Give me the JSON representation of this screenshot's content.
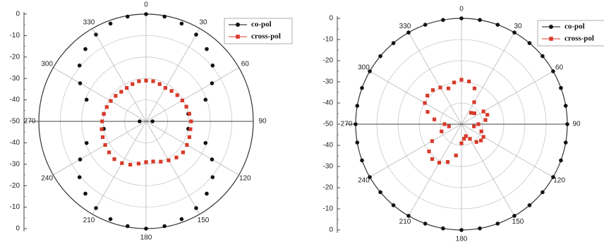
{
  "chart_data": [
    {
      "type": "polar-scatter",
      "title": "",
      "r_axis": {
        "range": [
          -50,
          0
        ],
        "tick_labels": [
          "0",
          "-10",
          "-20",
          "-30",
          "-40",
          "-50",
          "-40",
          "-30",
          "-20",
          "-10",
          "0"
        ]
      },
      "angle_axis": {
        "unit": "deg",
        "tick_labels": [
          "0",
          "30",
          "60",
          "90",
          "120",
          "150",
          "180",
          "210",
          "240",
          "270",
          "300",
          "330"
        ]
      },
      "legend": {
        "position": "top-right",
        "entries": [
          "co-pol",
          "cross-pol"
        ]
      },
      "grid": true,
      "series": [
        {
          "name": "co-pol",
          "color": "#111111",
          "marker": "circle",
          "angles": [
            0,
            10,
            20,
            30,
            40,
            50,
            60,
            70,
            80,
            90,
            100,
            110,
            120,
            130,
            140,
            150,
            160,
            170,
            180,
            190,
            200,
            210,
            220,
            230,
            240,
            250,
            260,
            270,
            280,
            290,
            300,
            310,
            320,
            330,
            340,
            350
          ],
          "values": [
            0,
            -0.4,
            -1.5,
            -3.3,
            -6,
            -9.5,
            -14.5,
            -20.5,
            -30,
            -47,
            -30,
            -20.5,
            -14.5,
            -9.5,
            -6,
            -3.3,
            -1.5,
            -0.4,
            0,
            -0.4,
            -1.5,
            -3.3,
            -6,
            -9.5,
            -14.5,
            -20.5,
            -30,
            -47,
            -30,
            -20.5,
            -14.5,
            -9.5,
            -6,
            -3.3,
            -1.5,
            -0.4
          ]
        },
        {
          "name": "cross-pol",
          "color": "#d83a2a",
          "marker": "square",
          "angles": [
            0,
            10,
            20,
            30,
            40,
            50,
            60,
            70,
            80,
            90,
            100,
            110,
            120,
            130,
            140,
            150,
            160,
            170,
            180,
            190,
            200,
            210,
            220,
            230,
            240,
            250,
            260,
            270,
            280,
            290,
            300,
            310,
            320,
            330,
            340,
            350
          ],
          "values": [
            -31,
            -31,
            -31.5,
            -32,
            -31.5,
            -31,
            -30.5,
            -30,
            -29.5,
            -29,
            -29,
            -28.5,
            -28,
            -27.5,
            -28,
            -29,
            -30,
            -31,
            -31,
            -30,
            -28.5,
            -27.5,
            -27,
            -27.5,
            -28,
            -28.5,
            -29,
            -29.5,
            -30,
            -30.5,
            -31,
            -31.5,
            -32,
            -32,
            -31.5,
            -31
          ]
        }
      ]
    },
    {
      "type": "polar-scatter",
      "title": "",
      "r_axis": {
        "range": [
          -50,
          0
        ],
        "tick_labels": [
          "0",
          "-10",
          "-20",
          "-30",
          "-40",
          "-50",
          "-40",
          "-30",
          "-20",
          "-10",
          "0"
        ]
      },
      "angle_axis": {
        "unit": "deg",
        "tick_labels": [
          "0",
          "30",
          "60",
          "90",
          "120",
          "150",
          "180",
          "210",
          "240",
          "270",
          "300",
          "330"
        ]
      },
      "legend": {
        "position": "top-right",
        "entries": [
          "co-pol",
          "cross-pol"
        ]
      },
      "grid": true,
      "series": [
        {
          "name": "co-pol",
          "color": "#111111",
          "marker": "circle",
          "angles": [
            0,
            10,
            20,
            30,
            40,
            50,
            60,
            70,
            80,
            90,
            100,
            110,
            120,
            130,
            140,
            150,
            160,
            170,
            180,
            190,
            200,
            210,
            220,
            230,
            240,
            250,
            260,
            270,
            280,
            290,
            300,
            310,
            320,
            330,
            340,
            350
          ],
          "values": [
            0,
            0,
            0,
            0,
            0,
            0,
            0,
            0,
            0,
            0,
            0,
            0,
            0,
            0,
            0,
            0,
            0,
            0,
            0,
            0,
            0,
            0,
            0,
            0,
            0,
            0,
            0,
            0,
            0,
            0,
            0,
            0,
            0,
            0,
            0,
            0
          ]
        },
        {
          "name": "cross-pol",
          "color": "#d83a2a",
          "marker": "square",
          "angles": [
            0,
            10,
            20,
            30,
            40,
            50,
            60,
            70,
            80,
            90,
            100,
            110,
            120,
            130,
            140,
            150,
            160,
            170,
            180,
            190,
            200,
            210,
            220,
            230,
            240,
            250,
            260,
            270,
            280,
            290,
            300,
            310,
            320,
            330,
            340,
            350
          ],
          "values": [
            -29,
            -29.5,
            -32,
            -38,
            -43,
            -42,
            -38,
            -37,
            -38.5,
            -42,
            -44,
            -40,
            -38,
            -38,
            -39,
            -42,
            -44,
            -43,
            -41,
            -35,
            -31,
            -29,
            -28.5,
            -30,
            -34,
            -40,
            -44,
            -42,
            -37,
            -33,
            -30,
            -29,
            -29,
            -30,
            -32,
            -30
          ]
        }
      ]
    }
  ]
}
